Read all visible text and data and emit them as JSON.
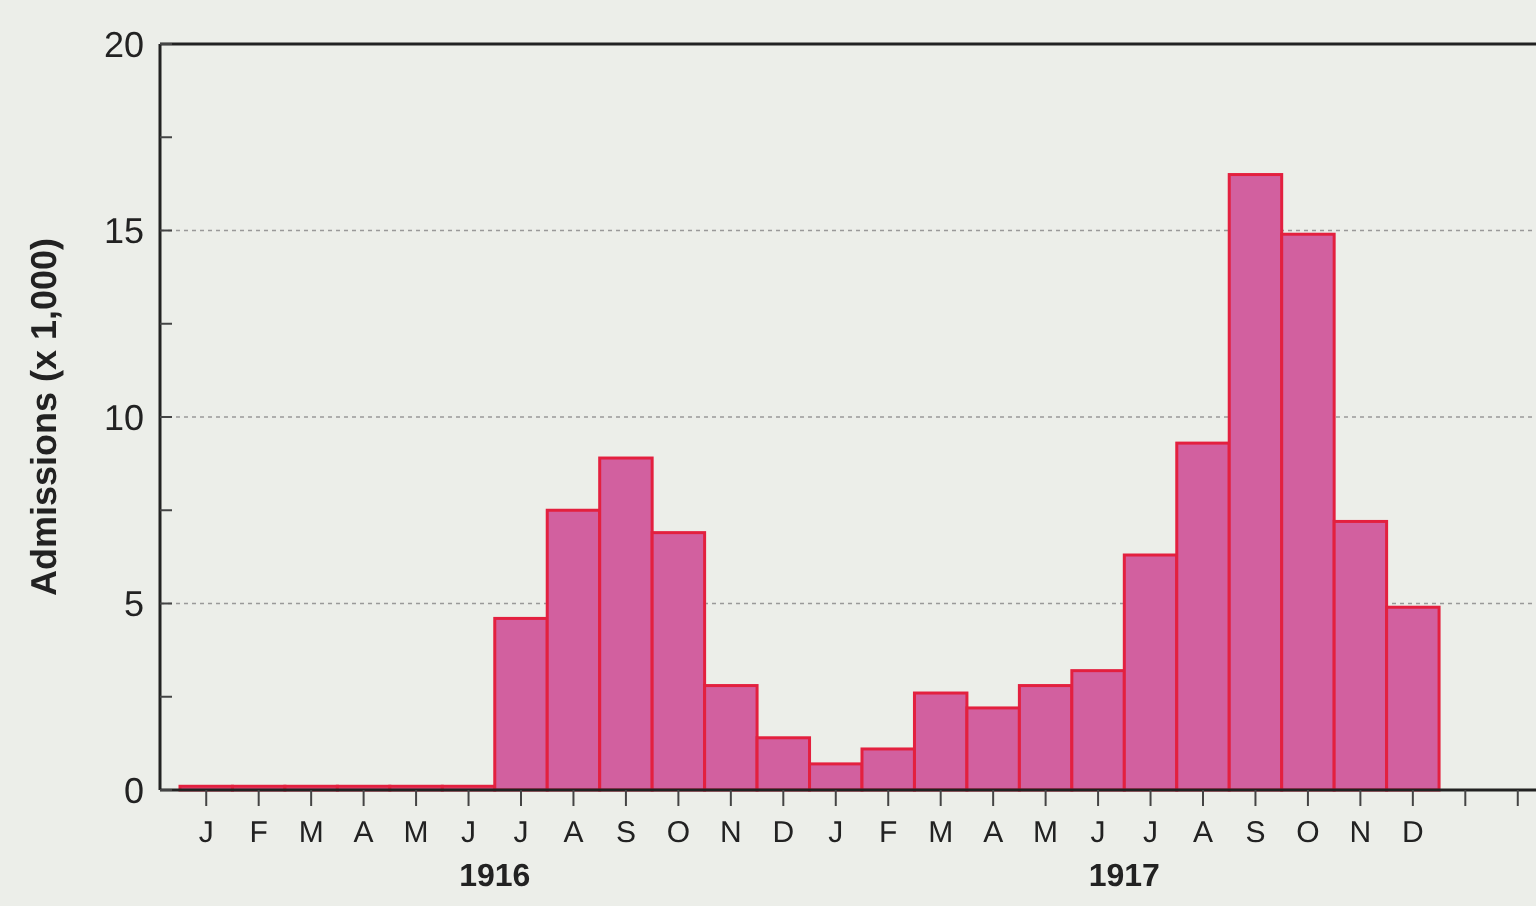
{
  "chart_data": {
    "type": "bar",
    "ylabel": "Admissions (x 1,000)",
    "categories": [
      "J",
      "F",
      "M",
      "A",
      "M",
      "J",
      "J",
      "A",
      "S",
      "O",
      "N",
      "D",
      "J",
      "F",
      "M",
      "A",
      "M",
      "J",
      "J",
      "A",
      "S",
      "O",
      "N",
      "D",
      null,
      null
    ],
    "values": [
      0.1,
      0.1,
      0.1,
      0.1,
      0.1,
      0.1,
      4.6,
      7.5,
      8.9,
      6.9,
      2.8,
      1.4,
      0.7,
      1.1,
      2.6,
      2.2,
      2.8,
      3.2,
      6.3,
      9.3,
      16.5,
      14.9,
      7.2,
      4.9,
      null,
      null
    ],
    "color": "#d2609f",
    "ylim": [
      0,
      20
    ],
    "yticks": [
      0,
      {
        "value": 2.5,
        "label": null
      },
      5,
      {
        "value": 7.5,
        "label": null
      },
      10,
      {
        "value": 12.5,
        "label": null
      },
      15,
      {
        "value": 17.5,
        "label": null
      },
      20
    ],
    "grid": "y",
    "annotations": [
      "1916",
      "1917"
    ]
  }
}
